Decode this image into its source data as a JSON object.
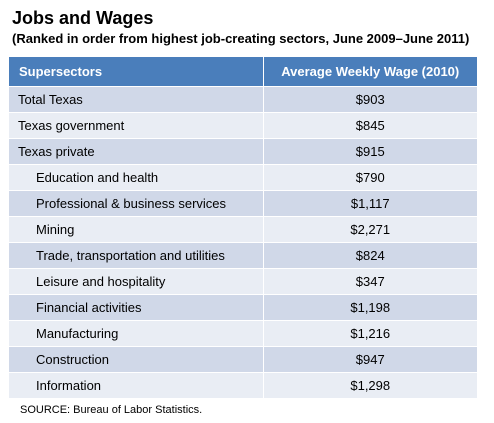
{
  "title": "Jobs and Wages",
  "subtitle": "(Ranked in order from highest job-creating sectors, June 2009–June 2011)",
  "source": "SOURCE: Bureau of Labor Statistics.",
  "colors": {
    "header_bg": "#4a7ebb",
    "row_dark": "#d0d8e8",
    "row_light": "#e9edf4"
  },
  "chart_data": {
    "type": "table",
    "title": "Jobs and Wages",
    "subtitle": "(Ranked in order from highest job-creating sectors, June 2009–June 2011)",
    "columns": [
      "Supersectors",
      "Average Weekly Wage (2010)"
    ],
    "rows": [
      {
        "name": "Total Texas",
        "wage": "$903",
        "value": 903,
        "indent": false
      },
      {
        "name": "Texas government",
        "wage": "$845",
        "value": 845,
        "indent": false
      },
      {
        "name": "Texas private",
        "wage": "$915",
        "value": 915,
        "indent": false
      },
      {
        "name": "Education and health",
        "wage": "$790",
        "value": 790,
        "indent": true
      },
      {
        "name": "Professional & business services",
        "wage": "$1,117",
        "value": 1117,
        "indent": true
      },
      {
        "name": "Mining",
        "wage": "$2,271",
        "value": 2271,
        "indent": true
      },
      {
        "name": "Trade, transportation and utilities",
        "wage": "$824",
        "value": 824,
        "indent": true
      },
      {
        "name": "Leisure and hospitality",
        "wage": "$347",
        "value": 347,
        "indent": true
      },
      {
        "name": "Financial activities",
        "wage": "$1,198",
        "value": 1198,
        "indent": true
      },
      {
        "name": "Manufacturing",
        "wage": "$1,216",
        "value": 1216,
        "indent": true
      },
      {
        "name": "Construction",
        "wage": "$947",
        "value": 947,
        "indent": true
      },
      {
        "name": "Information",
        "wage": "$1,298",
        "value": 1298,
        "indent": true
      }
    ],
    "source": "SOURCE: Bureau of Labor Statistics."
  }
}
